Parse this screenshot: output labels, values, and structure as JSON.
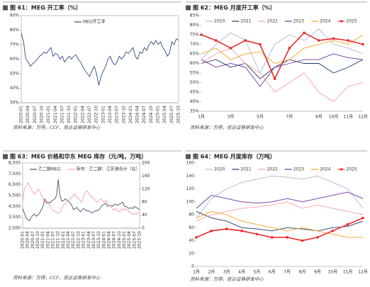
{
  "chart_data": [
    {
      "type": "line",
      "title": "图 61：MEG 开工率（%）",
      "source": "资料来源：万得，CCF，信达证券研发中心",
      "legend": "top",
      "categories": [
        "2020-01",
        null,
        null,
        "2020-04",
        null,
        null,
        "2020-07",
        null,
        null,
        "2020-10",
        null,
        null,
        "2021-01",
        null,
        null,
        "2021-04",
        null,
        null,
        "2021-07",
        null,
        null,
        "2021-10",
        null,
        null,
        "2022-01",
        null,
        null,
        "2022-04",
        null,
        null,
        "2022-07",
        null,
        null,
        "2022-10",
        null,
        null,
        "2023-01",
        null,
        null,
        "2023-04",
        null,
        null,
        "2023-07",
        null,
        null,
        "2023-10",
        null,
        null,
        "2024-01",
        null,
        null,
        "2024-04",
        null,
        null,
        "2024-07",
        null,
        null,
        "2024-10",
        null,
        null,
        "2025-01",
        null,
        null,
        "2025-04",
        null,
        null,
        "2025-07",
        null,
        null,
        "2025-10"
      ],
      "ylim": [
        30,
        90
      ],
      "yticks": [
        {
          "value": 30,
          "label": "30%"
        },
        {
          "value": 40,
          "label": "40%"
        },
        {
          "value": 50,
          "label": "50%"
        },
        {
          "value": 60,
          "label": "60%"
        },
        {
          "value": 70,
          "label": "70%"
        },
        {
          "value": 80,
          "label": "80%"
        },
        {
          "value": 90,
          "label": "90%"
        }
      ],
      "series": [
        {
          "name": "MEG开工率",
          "color": "#2e4a7d",
          "values": [
            78,
            72,
            60,
            58,
            55,
            57,
            58,
            60,
            62,
            63,
            65,
            64,
            66,
            68,
            62,
            64,
            63,
            60,
            62,
            58,
            60,
            62,
            60,
            62,
            63,
            60,
            58,
            55,
            52,
            50,
            48,
            52,
            55,
            50,
            42,
            48,
            52,
            55,
            60,
            62,
            58,
            56,
            58,
            62,
            60,
            62,
            65,
            64,
            66,
            68,
            62,
            60,
            65,
            64,
            68,
            66,
            70,
            72,
            70,
            73,
            70,
            72,
            68,
            66,
            62,
            64,
            72,
            70,
            74,
            73
          ]
        }
      ]
    },
    {
      "type": "line",
      "title": "图 62：MEG 月度开工率（%）",
      "source": "资料来源：万得，信达证券研发中心",
      "legend": "top",
      "categories": [
        "1月",
        null,
        "3月",
        null,
        "5月",
        null,
        "7月",
        null,
        "9月",
        "10月",
        "11月",
        "12月"
      ],
      "ylim": [
        35,
        85
      ],
      "yticks": [
        {
          "value": 35,
          "label": "35%"
        },
        {
          "value": 40,
          "label": "40%"
        },
        {
          "value": 45,
          "label": "45%"
        },
        {
          "value": 50,
          "label": "50%"
        },
        {
          "value": 55,
          "label": "55%"
        },
        {
          "value": 60,
          "label": "60%"
        },
        {
          "value": 65,
          "label": "65%"
        },
        {
          "value": 70,
          "label": "70%"
        },
        {
          "value": 75,
          "label": "75%"
        },
        {
          "value": 80,
          "label": "80%"
        },
        {
          "value": 85,
          "label": "85%"
        }
      ],
      "series": [
        {
          "name": "2020",
          "color": "#a9b8d0",
          "values": [
            62,
            70,
            76,
            72,
            55,
            70,
            75,
            72,
            78,
            70,
            68,
            65
          ]
        },
        {
          "name": "2021",
          "color": "#1f3864",
          "values": [
            60,
            62,
            58,
            60,
            52,
            58,
            62,
            60,
            60,
            55,
            58,
            62
          ]
        },
        {
          "name": "2022",
          "color": "#f4a0a8",
          "values": [
            60,
            65,
            68,
            60,
            55,
            45,
            50,
            55,
            45,
            40,
            48,
            50
          ]
        },
        {
          "name": "2023",
          "color": "#7030a0",
          "values": [
            62,
            58,
            60,
            58,
            48,
            58,
            60,
            62,
            62,
            65,
            63,
            62
          ]
        },
        {
          "name": "2024",
          "color": "#f5a623",
          "values": [
            65,
            68,
            62,
            65,
            66,
            60,
            62,
            68,
            70,
            72,
            70,
            75
          ]
        },
        {
          "name": "2025",
          "color": "#e8282b",
          "markers": true,
          "values": [
            75,
            72,
            68,
            72,
            70,
            52,
            68,
            76,
            72,
            73,
            72,
            70
          ]
        }
      ]
    },
    {
      "type": "line",
      "title": "图 63：MEG 价格和华东 MEG 库存（元/吨，万吨）",
      "source": "资料来源：万得，CCF，信达证券研发中心",
      "legend": "top",
      "categories": [
        "2020-01",
        null,
        null,
        "2020-04",
        null,
        null,
        "2020-07",
        null,
        null,
        "2020-10",
        null,
        null,
        "2021-01",
        null,
        null,
        "2021-04",
        null,
        null,
        "2021-07",
        null,
        null,
        "2021-10",
        null,
        null,
        "2022-01",
        null,
        null,
        "2022-04",
        null,
        null,
        "2022-07",
        null,
        null,
        "2022-10",
        null,
        null,
        "2023-01",
        null,
        null,
        "2023-04",
        null,
        null,
        "2023-07",
        null,
        null,
        "2023-10",
        null,
        null,
        "2024-01",
        null,
        null,
        "2024-04",
        null,
        null,
        "2024-07",
        null,
        null,
        "2024-10",
        null,
        null,
        "2025-01",
        null,
        null,
        "2025-04",
        null,
        null,
        "2025-07",
        null,
        null,
        "2025-10"
      ],
      "ylim": [
        2500,
        8500
      ],
      "yticks": [
        {
          "value": 2500,
          "label": "2,500"
        },
        {
          "value": 3500,
          "label": "3,500"
        },
        {
          "value": 4500,
          "label": "4,500"
        },
        {
          "value": 5500,
          "label": "5,500"
        },
        {
          "value": 6500,
          "label": "6,500"
        },
        {
          "value": 7500,
          "label": "7,500"
        },
        {
          "value": 8500,
          "label": "8,500"
        }
      ],
      "y2lim": [
        0,
        200
      ],
      "y2ticks": [
        0,
        40,
        80,
        120,
        160,
        200
      ],
      "series": [
        {
          "name": "乙二醇MEG",
          "color": "#44546a",
          "values": [
            4300,
            3900,
            3400,
            3300,
            3200,
            3500,
            3700,
            3800,
            3600,
            3700,
            3900,
            4200,
            4500,
            5200,
            4800,
            4900,
            4800,
            5000,
            5100,
            5200,
            5500,
            7000,
            5500,
            5000,
            5000,
            5200,
            5100,
            5000,
            4800,
            4600,
            4200,
            4300,
            4400,
            4200,
            4000,
            4200,
            4300,
            4200,
            4100,
            4100,
            4000,
            3900,
            4000,
            4100,
            4100,
            4200,
            4400,
            4600,
            4700,
            4800,
            4500,
            4600,
            4600,
            4500,
            4700,
            4700,
            4600,
            4700,
            4800,
            4900,
            4500,
            4500,
            4400,
            4300,
            4400,
            4300,
            4500,
            4400,
            4300,
            4200
          ]
        },
        {
          "name": "库存：乙二醇：江苏港合计（右）",
          "color": "#f4a0a8",
          "axis": "y2",
          "values": [
            80,
            120,
            130,
            140,
            130,
            120,
            110,
            105,
            110,
            120,
            115,
            100,
            90,
            80,
            85,
            75,
            70,
            60,
            55,
            50,
            50,
            45,
            50,
            60,
            70,
            75,
            80,
            85,
            90,
            95,
            100,
            105,
            95,
            90,
            85,
            80,
            100,
            110,
            115,
            105,
            100,
            95,
            90,
            85,
            80,
            85,
            90,
            85,
            80,
            85,
            80,
            70,
            65,
            60,
            55,
            60,
            55,
            50,
            55,
            60,
            55,
            60,
            55,
            50,
            45,
            42,
            45,
            42,
            48,
            50
          ]
        }
      ]
    },
    {
      "type": "line",
      "title": "图 64：MEG 月度库存（万吨）",
      "source": "资料来源：万得，信达证券研发中心",
      "legend": "top",
      "categories": [
        "1月",
        "2月",
        "3月",
        "4月",
        "5月",
        "6月",
        "7月",
        "8月",
        "9月",
        "10月",
        "11月",
        "12月"
      ],
      "ylim": [
        0,
        160
      ],
      "yticks": [
        0,
        20,
        40,
        60,
        80,
        100,
        120,
        140,
        160
      ],
      "series": [
        {
          "name": "2020",
          "color": "#a9b8d0",
          "values": [
            75,
            105,
            120,
            130,
            135,
            140,
            138,
            135,
            140,
            130,
            120,
            90
          ]
        },
        {
          "name": "2021",
          "color": "#1f3864",
          "values": [
            85,
            75,
            70,
            60,
            58,
            55,
            60,
            58,
            55,
            60,
            62,
            70
          ]
        },
        {
          "name": "2022",
          "color": "#f4a0a8",
          "values": [
            70,
            80,
            85,
            90,
            92,
            95,
            100,
            90,
            95,
            90,
            85,
            80
          ]
        },
        {
          "name": "2023",
          "color": "#7030a0",
          "values": [
            90,
            110,
            105,
            100,
            98,
            100,
            105,
            100,
            105,
            110,
            115,
            105
          ]
        },
        {
          "name": "2024",
          "color": "#f5a623",
          "values": [
            75,
            85,
            80,
            70,
            65,
            60,
            55,
            60,
            55,
            50,
            45,
            45
          ]
        },
        {
          "name": "2025",
          "color": "#e8282b",
          "markers": true,
          "values": [
            45,
            55,
            58,
            55,
            50,
            45,
            45,
            40,
            45,
            55,
            65,
            75
          ]
        }
      ]
    }
  ]
}
